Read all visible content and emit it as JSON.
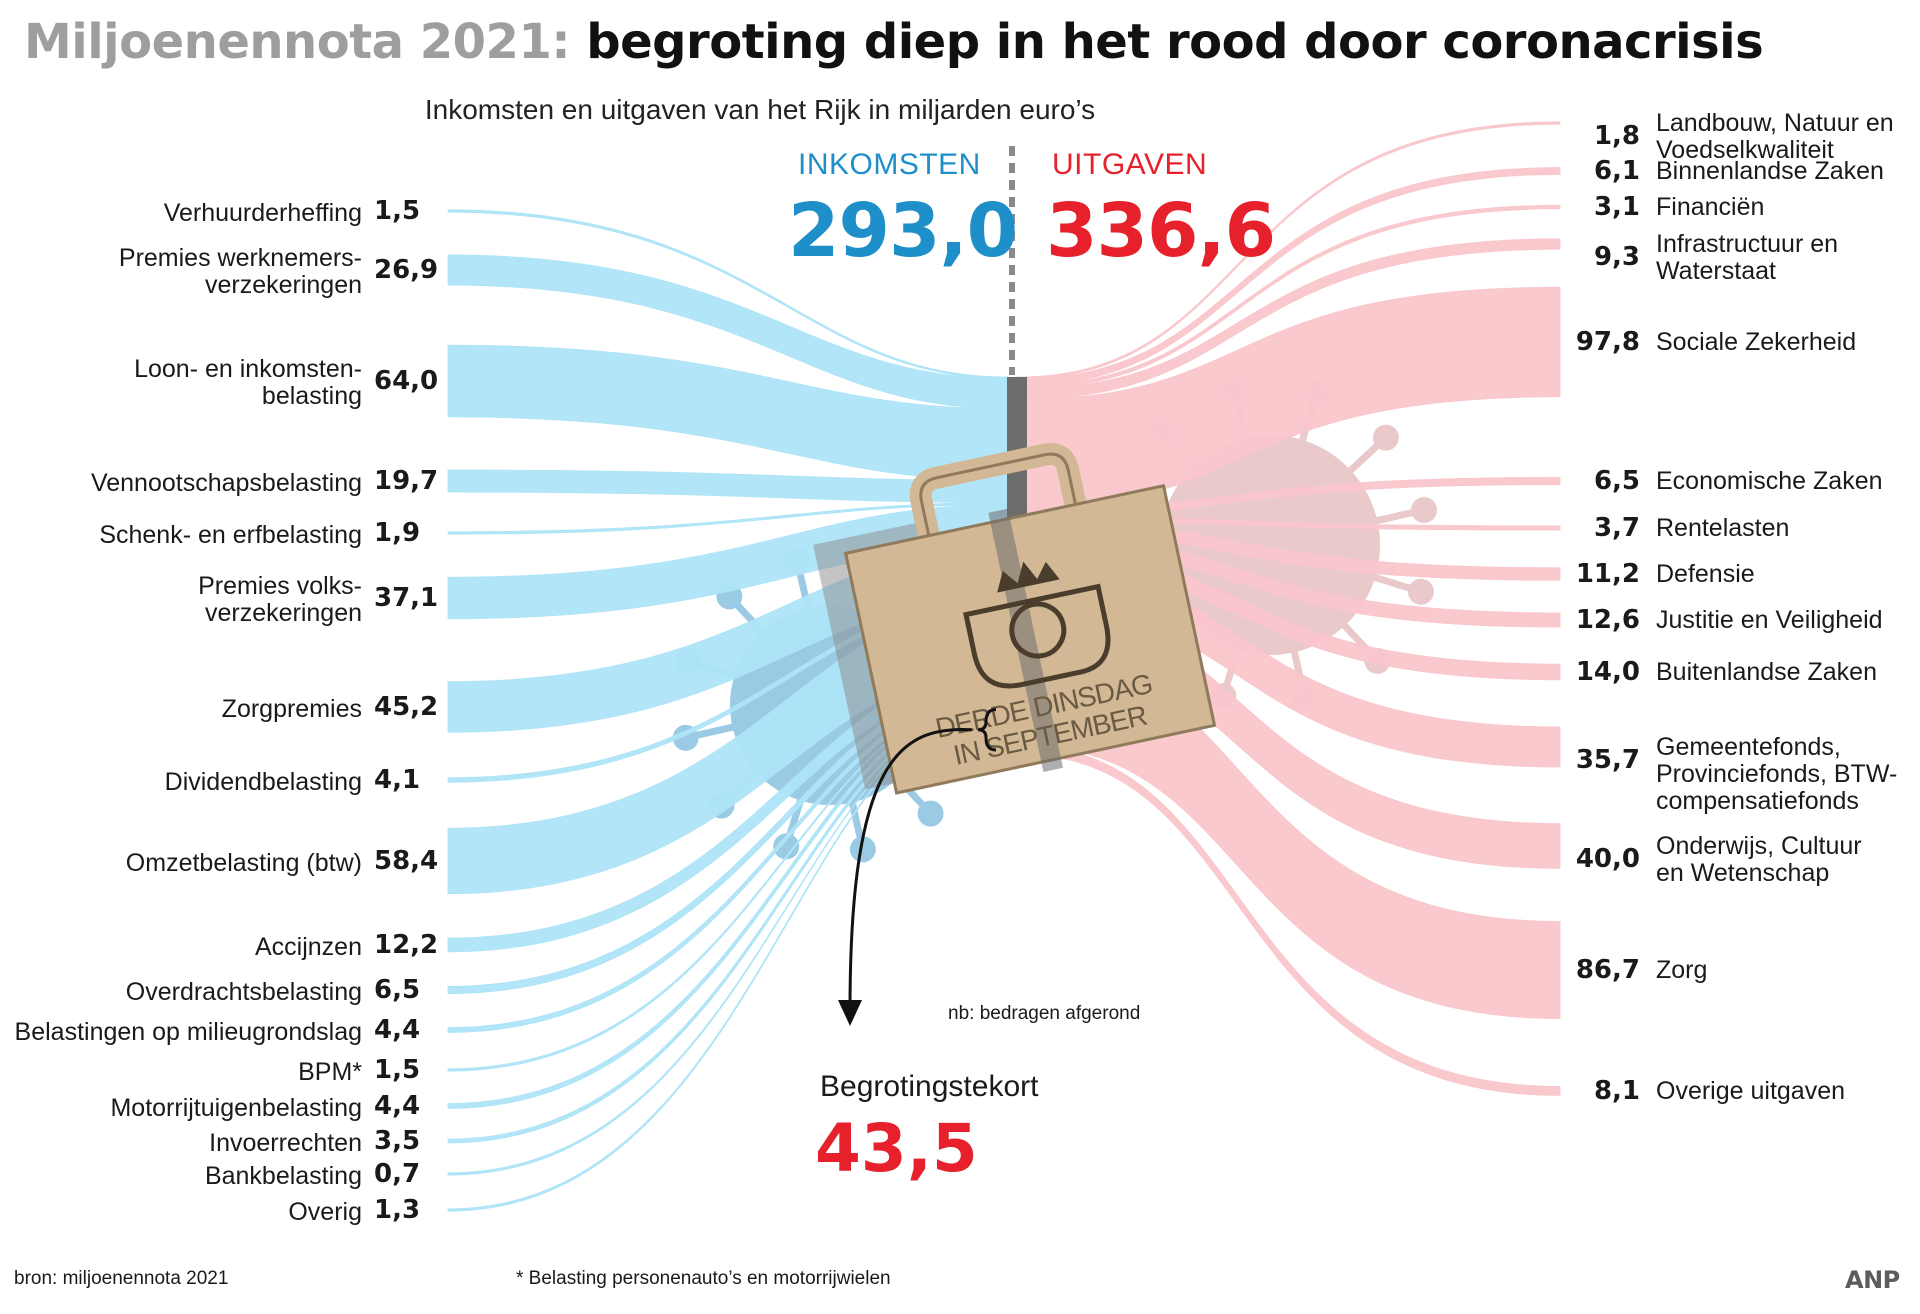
{
  "title": {
    "prefix": "Miljoenennota 2021:",
    "main": "begroting diep in het rood door coronacrisis"
  },
  "subtitle": "Inkomsten en uitgaven van het Rijk in miljarden euro’s",
  "income_header": {
    "label": "INKOMSTEN",
    "total": "293,0"
  },
  "expense_header": {
    "label": "UITGAVEN",
    "total": "336,6"
  },
  "deficit": {
    "label": "Begrotingstekort",
    "value": "43,5"
  },
  "note": "nb: bedragen afgerond",
  "bag_text": {
    "line1": "DERDE DINSDAG",
    "line2": "IN SEPTEMBER"
  },
  "source": "bron: miljoenennota 2021",
  "footnote": "* Belasting personenauto’s en motorrijwielen",
  "logo": "ANP",
  "colors": {
    "income": "#aee4f7",
    "expense": "#f9c6cb",
    "blue_text": "#1f8fc9",
    "red_text": "#e6212b",
    "bag": "#d2b895",
    "bar": "#6d6d6d",
    "deficit_bar": "#e6212b"
  },
  "chart_data": {
    "type": "sankey",
    "title": "Miljoenennota 2021: begroting diep in het rood door coronacrisis",
    "unit": "miljarden euro’s",
    "income_total": 293.0,
    "expense_total": 336.6,
    "deficit": 43.5,
    "income": [
      {
        "label": "Verhuurderheffing",
        "value": 1.5,
        "value_label": "1,5"
      },
      {
        "label": "Premies werknemers-\nverzekeringen",
        "value": 26.9,
        "value_label": "26,9"
      },
      {
        "label": "Loon- en inkomsten-\nbelasting",
        "value": 64.0,
        "value_label": "64,0"
      },
      {
        "label": "Vennootschapsbelasting",
        "value": 19.7,
        "value_label": "19,7"
      },
      {
        "label": "Schenk- en erfbelasting",
        "value": 1.9,
        "value_label": "1,9"
      },
      {
        "label": "Premies volks-\nverzekeringen",
        "value": 37.1,
        "value_label": "37,1"
      },
      {
        "label": "Zorgpremies",
        "value": 45.2,
        "value_label": "45,2"
      },
      {
        "label": "Dividendbelasting",
        "value": 4.1,
        "value_label": "4,1"
      },
      {
        "label": "Omzetbelasting (btw)",
        "value": 58.4,
        "value_label": "58,4"
      },
      {
        "label": "Accijnzen",
        "value": 12.2,
        "value_label": "12,2"
      },
      {
        "label": "Overdrachtsbelasting",
        "value": 6.5,
        "value_label": "6,5"
      },
      {
        "label": "Belastingen op milieugrondslag",
        "value": 4.4,
        "value_label": "4,4"
      },
      {
        "label": "BPM*",
        "value": 1.5,
        "value_label": "1,5"
      },
      {
        "label": "Motorrijtuigenbelasting",
        "value": 4.4,
        "value_label": "4,4"
      },
      {
        "label": "Invoerrechten",
        "value": 3.5,
        "value_label": "3,5"
      },
      {
        "label": "Bankbelasting",
        "value": 0.7,
        "value_label": "0,7"
      },
      {
        "label": "Overig",
        "value": 1.3,
        "value_label": "1,3"
      }
    ],
    "expenses": [
      {
        "label": "Landbouw, Natuur en\nVoedselkwaliteit",
        "value": 1.8,
        "value_label": "1,8"
      },
      {
        "label": "Binnenlandse Zaken",
        "value": 6.1,
        "value_label": "6,1"
      },
      {
        "label": "Financiën",
        "value": 3.1,
        "value_label": "3,1"
      },
      {
        "label": "Infrastructuur en\nWaterstaat",
        "value": 9.3,
        "value_label": "9,3"
      },
      {
        "label": "Sociale Zekerheid",
        "value": 97.8,
        "value_label": "97,8"
      },
      {
        "label": "Economische Zaken",
        "value": 6.5,
        "value_label": "6,5"
      },
      {
        "label": "Rentelasten",
        "value": 3.7,
        "value_label": "3,7"
      },
      {
        "label": "Defensie",
        "value": 11.2,
        "value_label": "11,2"
      },
      {
        "label": "Justitie en Veiligheid",
        "value": 12.6,
        "value_label": "12,6"
      },
      {
        "label": "Buitenlandse Zaken",
        "value": 14.0,
        "value_label": "14,0"
      },
      {
        "label": "Gemeentefonds,\nProvinciefonds, BTW-\ncompensatiefonds",
        "value": 35.7,
        "value_label": "35,7"
      },
      {
        "label": "Onderwijs, Cultuur\nen Wetenschap",
        "value": 40.0,
        "value_label": "40,0"
      },
      {
        "label": "Zorg",
        "value": 86.7,
        "value_label": "86,7"
      },
      {
        "label": "Overige uitgaven",
        "value": 8.1,
        "value_label": "8,1"
      }
    ]
  }
}
